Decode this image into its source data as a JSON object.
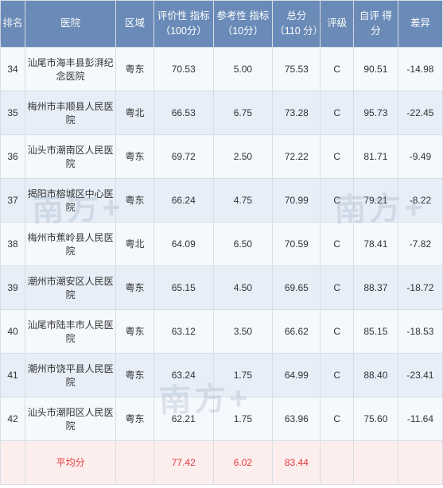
{
  "headers": {
    "rank": "排名",
    "hospital": "医院",
    "region": "区域",
    "eval_score": "评价性\n指标\n（100分）",
    "ref_score": "参考性\n指标\n（10分）",
    "total": "总分\n（110\n分）",
    "grade": "评级",
    "self_score": "自评\n得分",
    "diff": "差异"
  },
  "rows": [
    {
      "rank": "34",
      "hospital": "汕尾市海丰县彭湃纪念医院",
      "region": "粤东",
      "eval": "70.53",
      "ref": "5.00",
      "total": "75.53",
      "grade": "C",
      "self": "90.51",
      "diff": "-14.98"
    },
    {
      "rank": "35",
      "hospital": "梅州市丰顺县人民医院",
      "region": "粤北",
      "eval": "66.53",
      "ref": "6.75",
      "total": "73.28",
      "grade": "C",
      "self": "95.73",
      "diff": "-22.45"
    },
    {
      "rank": "36",
      "hospital": "汕头市潮南区人民医院",
      "region": "粤东",
      "eval": "69.72",
      "ref": "2.50",
      "total": "72.22",
      "grade": "C",
      "self": "81.71",
      "diff": "-9.49"
    },
    {
      "rank": "37",
      "hospital": "揭阳市榕城区中心医院",
      "region": "粤东",
      "eval": "66.24",
      "ref": "4.75",
      "total": "70.99",
      "grade": "C",
      "self": "79.21",
      "diff": "-8.22"
    },
    {
      "rank": "38",
      "hospital": "梅州市蕉岭县人民医院",
      "region": "粤北",
      "eval": "64.09",
      "ref": "6.50",
      "total": "70.59",
      "grade": "C",
      "self": "78.41",
      "diff": "-7.82"
    },
    {
      "rank": "39",
      "hospital": "潮州市潮安区人民医院",
      "region": "粤东",
      "eval": "65.15",
      "ref": "4.50",
      "total": "69.65",
      "grade": "C",
      "self": "88.37",
      "diff": "-18.72"
    },
    {
      "rank": "40",
      "hospital": "汕尾市陆丰市人民医院",
      "region": "粤东",
      "eval": "63.12",
      "ref": "3.50",
      "total": "66.62",
      "grade": "C",
      "self": "85.15",
      "diff": "-18.53"
    },
    {
      "rank": "41",
      "hospital": "潮州市饶平县人民医院",
      "region": "粤东",
      "eval": "63.24",
      "ref": "1.75",
      "total": "64.99",
      "grade": "C",
      "self": "88.40",
      "diff": "-23.41"
    },
    {
      "rank": "42",
      "hospital": "汕头市潮阳区人民医院",
      "region": "粤东",
      "eval": "62.21",
      "ref": "1.75",
      "total": "63.96",
      "grade": "C",
      "self": "75.60",
      "diff": "-11.64"
    }
  ],
  "average": {
    "label": "平均分",
    "eval": "77.42",
    "ref": "6.02",
    "total": "83.44"
  },
  "watermarks": [
    "南方+",
    "南方+",
    "南方+",
    "南方+",
    "南方+"
  ]
}
